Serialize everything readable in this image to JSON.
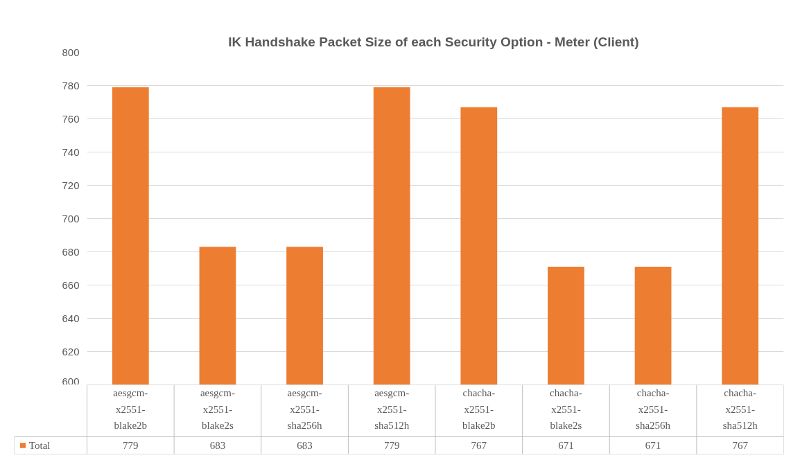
{
  "chart_data": {
    "type": "bar",
    "title": "IK Handshake Packet Size of each Security Option -  Meter (Client)",
    "categories": [
      "aesgcm-x2551-blake2b",
      "aesgcm-x2551-blake2s",
      "aesgcm-x2551-sha256h",
      "aesgcm-x2551-sha512h",
      "chacha-x2551-blake2b",
      "chacha-x2551-blake2s",
      "chacha-x2551-sha256h",
      "chacha-x2551-sha512h"
    ],
    "series": [
      {
        "name": "Total",
        "color": "#ed7d31",
        "values": [
          779,
          683,
          683,
          779,
          767,
          671,
          671,
          767
        ]
      }
    ],
    "ylim": [
      600,
      800
    ],
    "yticks": [
      600,
      620,
      640,
      660,
      680,
      700,
      720,
      740,
      760,
      780,
      800
    ],
    "grid": "y",
    "data_labels": true
  }
}
